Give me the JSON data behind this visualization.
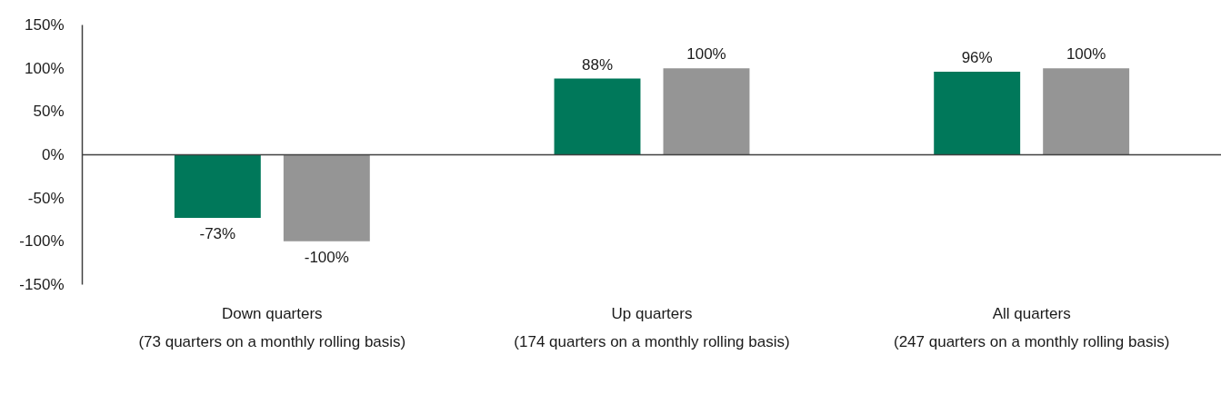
{
  "chart_data": {
    "type": "bar",
    "categories": [
      "Down quarters\n(73 quarters on a monthly rolling basis)",
      "Up quarters\n(174 quarters on a monthly rolling basis)",
      "All quarters\n(247 quarters on a monthly rolling basis)"
    ],
    "series": [
      {
        "color": "#00785a",
        "values": [
          -73,
          88,
          96
        ],
        "value_labels": [
          "-73%",
          "88%",
          "96%"
        ]
      },
      {
        "color": "#959595",
        "values": [
          -100,
          100,
          100
        ],
        "value_labels": [
          "-100%",
          "100%",
          "100%"
        ]
      }
    ],
    "ylim": [
      -150,
      150
    ],
    "yticks": [
      {
        "value": -150,
        "label": "-150%"
      },
      {
        "value": -100,
        "label": "-100%"
      },
      {
        "value": -50,
        "label": "-50%"
      },
      {
        "value": 0,
        "label": "0%"
      },
      {
        "value": 50,
        "label": "50%"
      },
      {
        "value": 100,
        "label": "100%"
      },
      {
        "value": 150,
        "label": "150%"
      }
    ],
    "ref_lines": [
      {
        "axis": "y",
        "value": 0,
        "color": "#404040"
      }
    ],
    "grid": false
  }
}
